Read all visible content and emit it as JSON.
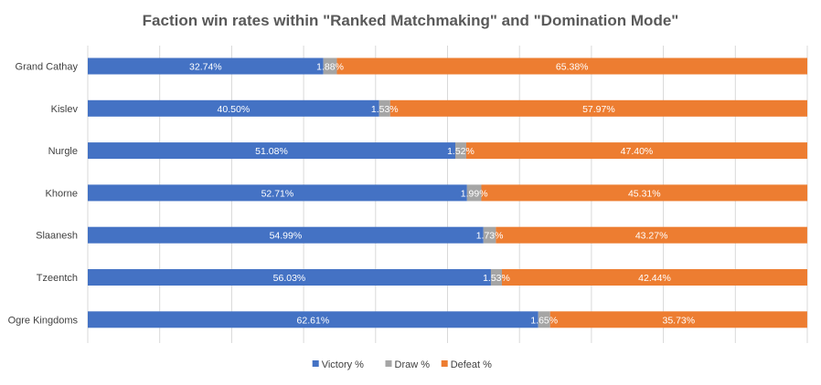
{
  "chart_data": {
    "type": "bar",
    "orientation": "horizontal",
    "stacked": true,
    "title": "Faction win rates within \"Ranked Matchmaking\" and \"Domination Mode\"",
    "categories": [
      "Grand Cathay",
      "Kislev",
      "Nurgle",
      "Khorne",
      "Slaanesh",
      "Tzeentch",
      "Ogre Kingdoms"
    ],
    "series": [
      {
        "name": "Victory %",
        "color": "#4472C4",
        "values": [
          32.74,
          40.5,
          51.08,
          52.71,
          54.99,
          56.03,
          62.61
        ],
        "labels": [
          "32.74%",
          "40.50%",
          "51.08%",
          "52.71%",
          "54.99%",
          "56.03%",
          "62.61%"
        ]
      },
      {
        "name": "Draw %",
        "color": "#A5A5A5",
        "values": [
          1.88,
          1.53,
          1.52,
          1.99,
          1.73,
          1.53,
          1.65
        ],
        "labels": [
          "1.88%",
          "1.53%",
          "1.52%",
          "1.99%",
          "1.73%",
          "1.53%",
          "1.65%"
        ]
      },
      {
        "name": "Defeat %",
        "color": "#ED7D31",
        "values": [
          65.38,
          57.97,
          47.4,
          45.31,
          43.27,
          42.44,
          35.73
        ],
        "labels": [
          "65.38%",
          "57.97%",
          "47.40%",
          "45.31%",
          "43.27%",
          "42.44%",
          "35.73%"
        ]
      }
    ],
    "xlim": [
      0,
      100
    ],
    "grid": true,
    "legend_position": "bottom"
  }
}
